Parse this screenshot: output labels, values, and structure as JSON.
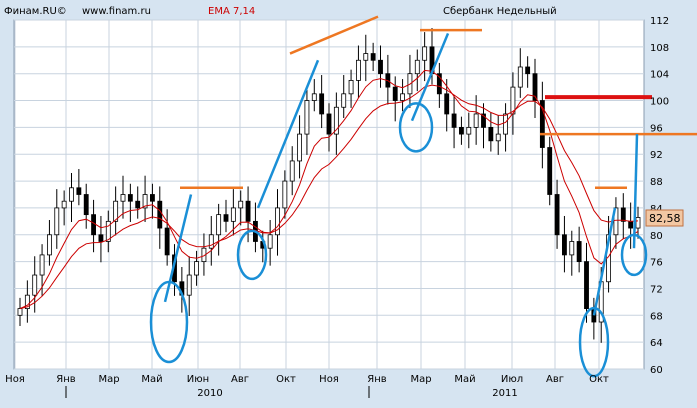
{
  "chart_data": {
    "type": "candlestick",
    "title": "Сбербанк Недельный",
    "source": {
      "brand": "Финам.RU©",
      "website": "www.finam.ru"
    },
    "indicator": {
      "label": "EMA 7,14",
      "color": "#cc0000",
      "periods": [
        7,
        14
      ]
    },
    "last_price_label": "82,58",
    "last_price": 82.58,
    "ylim": [
      60,
      112
    ],
    "y_ticks": [
      "60",
      "64",
      "68",
      "72",
      "76",
      "80",
      "84",
      "88",
      "92",
      "96",
      "100",
      "104",
      "108",
      "112"
    ],
    "x_month_labels": [
      "Ноя",
      "Янв",
      "Мар",
      "Май",
      "Июн",
      "Авг",
      "Окт",
      "Ноя",
      "Янв",
      "Мар",
      "Май",
      "Июл",
      "Авг",
      "Окт"
    ],
    "x_year_labels": [
      "2010",
      "2011"
    ],
    "grid": true,
    "series": [
      {
        "name": "weekly_close",
        "approx_close": [
          69,
          71,
          74,
          77,
          80,
          84,
          85,
          87,
          86,
          83,
          80,
          79,
          82,
          85,
          86,
          85,
          84,
          86,
          85,
          81,
          77,
          73,
          71,
          74,
          76,
          78,
          80,
          83,
          82,
          84,
          85,
          82,
          79,
          78,
          80,
          84,
          88,
          91,
          95,
          100,
          101,
          98,
          95,
          99,
          101,
          103,
          106,
          107,
          106,
          104,
          102,
          100,
          101,
          104,
          106,
          108,
          104,
          101,
          98,
          96,
          95,
          96,
          98,
          96,
          94,
          95,
          98,
          102,
          105,
          104,
          100,
          93,
          86,
          80,
          77,
          79,
          76,
          69,
          67,
          73,
          80,
          84,
          82,
          81,
          82.58
        ]
      }
    ],
    "annotations": {
      "horizontal_levels": [
        87,
        111,
        110,
        95,
        100.5,
        87
      ],
      "trendlines": 6,
      "circled_lows": 5
    }
  }
}
